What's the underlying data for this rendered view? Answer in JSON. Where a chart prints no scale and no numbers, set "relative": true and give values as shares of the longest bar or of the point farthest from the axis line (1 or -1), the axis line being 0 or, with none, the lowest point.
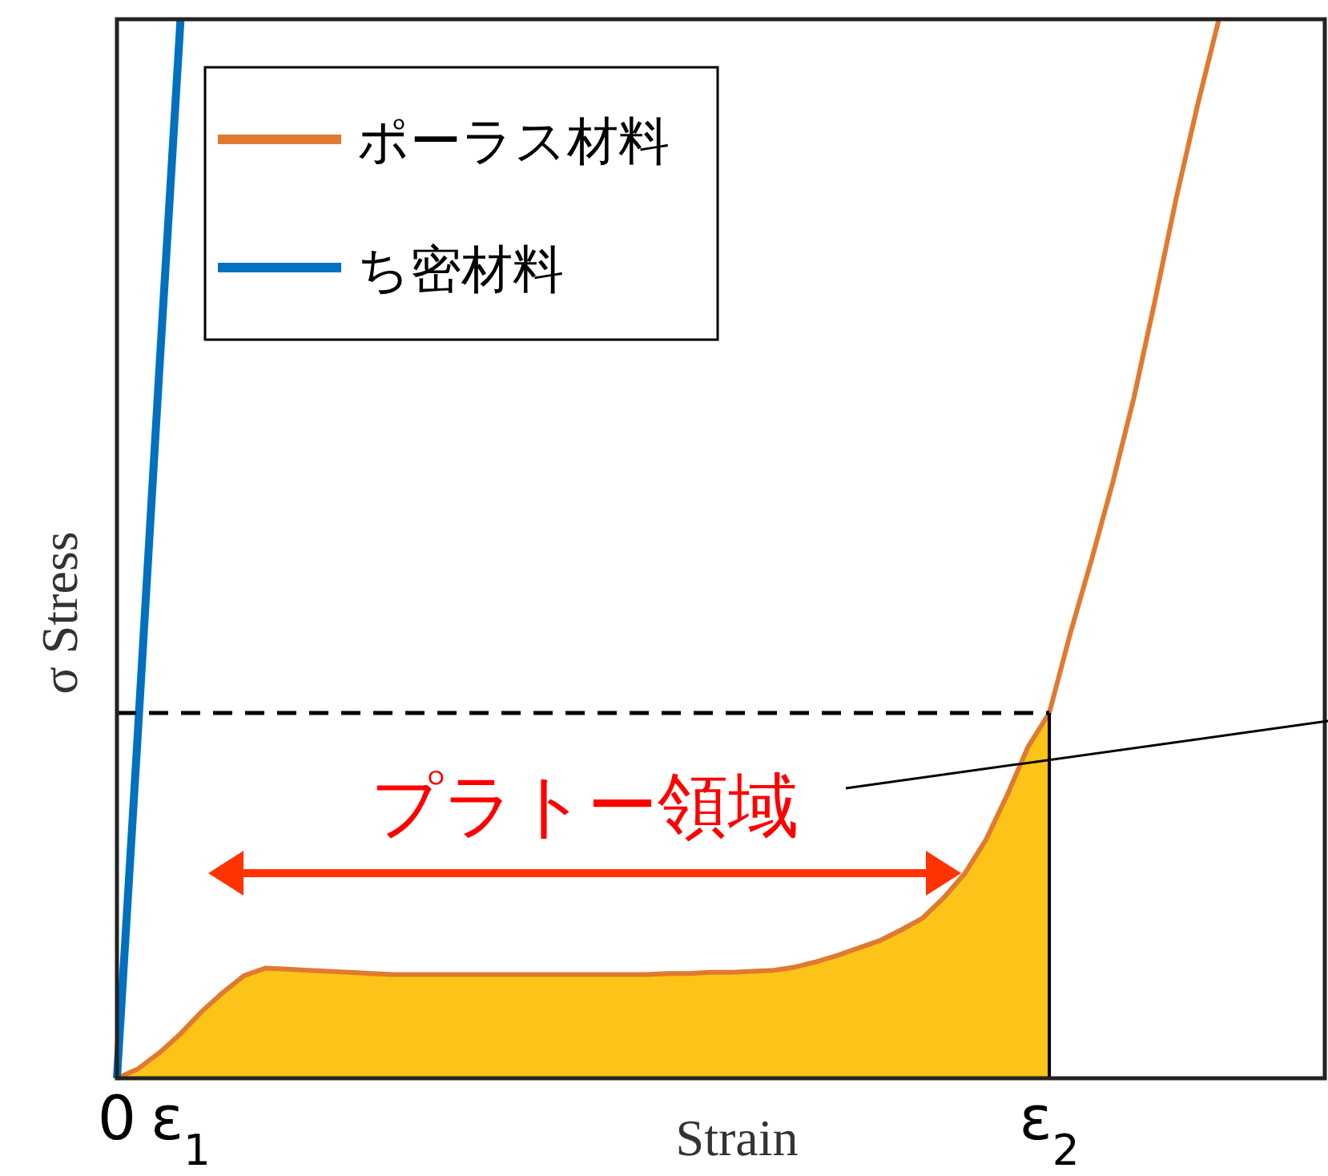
{
  "chart_data": {
    "type": "line",
    "relative": true,
    "xlabel": "Strain",
    "ylabel": "σ Stress",
    "categories": [
      "0",
      null,
      null,
      "ε$_{1}$",
      null,
      null,
      null,
      null,
      null,
      null,
      null,
      null,
      null,
      null,
      null,
      null,
      null,
      null,
      null,
      null,
      null,
      null,
      null,
      null,
      null,
      null,
      null,
      null,
      null,
      null,
      null,
      null,
      null,
      null,
      null,
      null,
      null,
      null,
      null,
      null,
      null,
      null,
      null,
      null,
      "ε$_{2}$",
      null,
      null,
      null,
      null,
      null,
      null,
      null,
      null,
      null,
      null,
      null,
      null,
      null
    ],
    "legend": "top left",
    "series": [
      {
        "type": "area",
        "color": "#fcc419",
        "values": [
          0,
          0.009,
          0.024,
          0.042,
          0.063,
          0.081,
          0.097,
          0.104,
          0.103,
          0.102,
          0.101,
          0.1,
          0.099,
          0.098,
          0.098,
          0.098,
          0.098,
          0.098,
          0.098,
          0.098,
          0.098,
          0.098,
          0.098,
          0.098,
          0.098,
          0.098,
          0.099,
          0.099,
          0.1,
          0.1,
          0.101,
          0.102,
          0.105,
          0.11,
          0.116,
          0.123,
          0.13,
          0.14,
          0.151,
          0.17,
          0.193,
          0.225,
          0.267,
          0.313,
          0.345,
          null,
          null,
          null,
          null,
          null,
          null,
          null,
          null,
          null,
          null,
          null,
          null,
          null
        ]
      },
      {
        "name": "ポーラス材料",
        "type": "line",
        "color": "#e07a30",
        "values": [
          0,
          0.009,
          0.024,
          0.042,
          0.063,
          0.081,
          0.097,
          0.104,
          0.103,
          0.102,
          0.101,
          0.1,
          0.099,
          0.098,
          0.098,
          0.098,
          0.098,
          0.098,
          0.098,
          0.098,
          0.098,
          0.098,
          0.098,
          0.098,
          0.098,
          0.098,
          0.099,
          0.099,
          0.1,
          0.1,
          0.101,
          0.102,
          0.105,
          0.11,
          0.116,
          0.123,
          0.13,
          0.14,
          0.151,
          0.17,
          0.193,
          0.225,
          0.267,
          0.313,
          0.345,
          0.421,
          0.49,
          0.563,
          0.643,
          0.736,
          0.832,
          0.919,
          1.0,
          null,
          null,
          null,
          null,
          null
        ]
      },
      {
        "name": "ち密材料",
        "color": "#0070c0",
        "values": [
          0,
          0.33,
          0.67,
          1.0,
          null,
          null,
          null,
          null,
          null,
          null,
          null,
          null,
          null,
          null,
          null,
          null,
          null,
          null,
          null,
          null,
          null,
          null,
          null,
          null,
          null,
          null,
          null,
          null,
          null,
          null,
          null,
          null,
          null,
          null,
          null,
          null,
          null,
          null,
          null,
          null,
          null,
          null,
          null,
          null,
          null,
          null,
          null,
          null,
          null,
          null,
          null,
          null,
          null,
          null,
          null,
          null,
          null,
          null
        ]
      }
    ],
    "ref_lines": [
      {
        "axis": "y",
        "value": 0.345,
        "color": "#000000",
        "line_style": "dashed"
      }
    ],
    "annotations": [
      "プラトー領域"
    ]
  }
}
